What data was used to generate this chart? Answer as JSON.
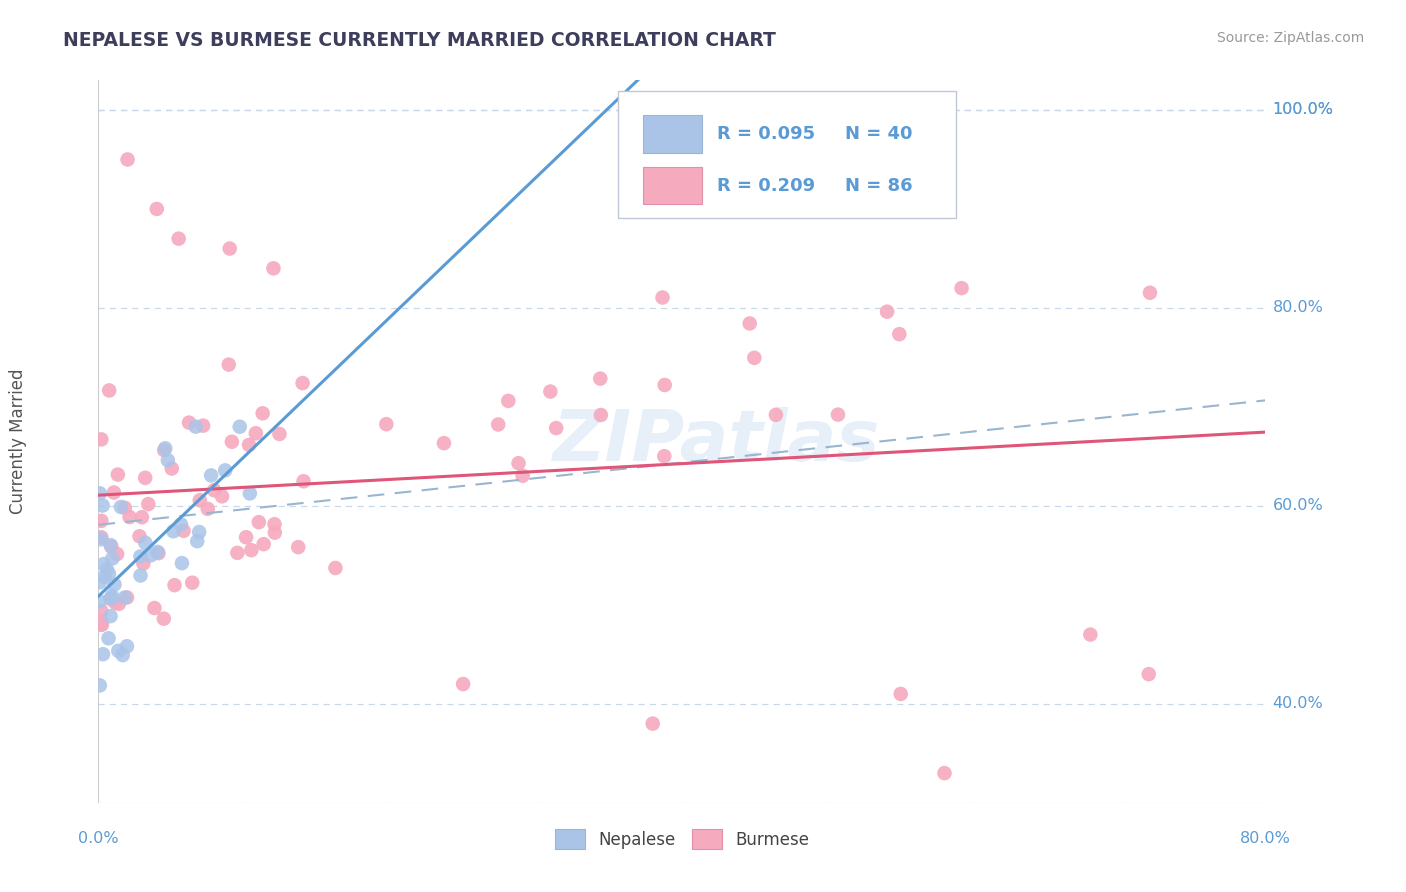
{
  "title": "NEPALESE VS BURMESE CURRENTLY MARRIED CORRELATION CHART",
  "source": "Source: ZipAtlas.com",
  "ylabel": "Currently Married",
  "xmin": 0.0,
  "xmax": 0.8,
  "ymin": 0.3,
  "ymax": 1.03,
  "yticks": [
    0.4,
    0.6,
    0.8,
    1.0
  ],
  "ytick_labels": [
    "40.0%",
    "60.0%",
    "80.0%",
    "100.0%"
  ],
  "nepalese_color": "#aac4e8",
  "burmese_color": "#f5aabe",
  "nepalese_edge": "#7aaad4",
  "burmese_edge": "#e87090",
  "nepalese_R": 0.095,
  "nepalese_N": 40,
  "burmese_R": 0.209,
  "burmese_N": 86,
  "watermark": "ZIPatlas",
  "title_color": "#3d3d5c",
  "axis_label_color": "#5b9bd5",
  "trend_nepalese_color": "#5b9bd5",
  "trend_burmese_color": "#e05578",
  "trend_combined_color": "#9ab5d0",
  "background_color": "#ffffff",
  "grid_color": "#c8d8e8"
}
